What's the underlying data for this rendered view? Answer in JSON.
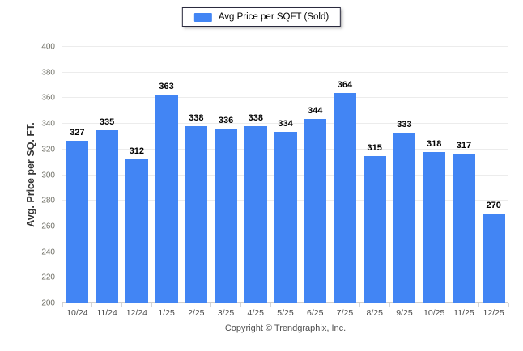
{
  "legend": {
    "label": "Avg Price per SQFT (Sold)"
  },
  "chart_data": {
    "type": "bar",
    "title": "",
    "series_name": "Avg Price per SQFT (Sold)",
    "categories": [
      "10/24",
      "11/24",
      "12/24",
      "1/25",
      "2/25",
      "3/25",
      "4/25",
      "5/25",
      "6/25",
      "7/25",
      "8/25",
      "9/25",
      "10/25",
      "11/25",
      "12/25"
    ],
    "values": [
      327,
      335,
      312,
      363,
      338,
      336,
      338,
      334,
      344,
      364,
      315,
      333,
      318,
      317,
      270
    ],
    "xlabel": "",
    "ylabel": "Avg. Price per SQ. FT.",
    "ylim": [
      200,
      400
    ],
    "ytick_step": 20,
    "grid": "horizontal",
    "legend_position": "top-center",
    "value_labels": true,
    "bar_color": "#4285f4"
  },
  "colors": {
    "bar": "#4285f4",
    "gridline": "#ececec",
    "axis_line": "#cfcfcf",
    "value_label": "#000000",
    "y_tick_label": "#6f6f66",
    "x_tick_label": "#4a4a4a",
    "legend_border": "#2a2a3e",
    "background": "#ffffff"
  },
  "footer": {
    "copyright": "Copyright © Trendgraphix, Inc."
  }
}
